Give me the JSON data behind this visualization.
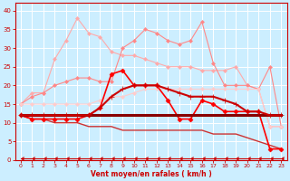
{
  "xlabel": "Vent moyen/en rafales ( km/h )",
  "background_color": "#cceeff",
  "grid_color": "#ffffff",
  "xlim": [
    -0.5,
    23.5
  ],
  "ylim": [
    0,
    42
  ],
  "yticks": [
    0,
    5,
    10,
    15,
    20,
    25,
    30,
    35,
    40
  ],
  "xticks": [
    0,
    1,
    2,
    3,
    4,
    5,
    6,
    7,
    8,
    9,
    10,
    11,
    12,
    13,
    14,
    15,
    16,
    17,
    18,
    19,
    20,
    21,
    22,
    23
  ],
  "lines": [
    {
      "x": [
        0,
        1,
        2,
        3,
        4,
        5,
        6,
        7,
        8,
        9,
        10,
        11,
        12,
        13,
        14,
        15,
        16,
        17,
        18,
        19,
        20,
        21,
        22,
        23
      ],
      "y": [
        15,
        18,
        18,
        27,
        32,
        38,
        34,
        33,
        29,
        28,
        28,
        27,
        26,
        25,
        25,
        25,
        24,
        24,
        24,
        25,
        20,
        19,
        9,
        9
      ],
      "color": "#ffaaaa",
      "lw": 0.8,
      "marker": "D",
      "ms": 2.0,
      "zorder": 2
    },
    {
      "x": [
        0,
        1,
        2,
        3,
        4,
        5,
        6,
        7,
        8,
        9,
        10,
        11,
        12,
        13,
        14,
        15,
        16,
        17,
        18,
        19,
        20,
        21,
        22,
        23
      ],
      "y": [
        15,
        17,
        18,
        20,
        21,
        22,
        22,
        21,
        21,
        30,
        32,
        35,
        34,
        32,
        31,
        32,
        37,
        26,
        20,
        20,
        20,
        19,
        25,
        9
      ],
      "color": "#ff8888",
      "lw": 0.8,
      "marker": "D",
      "ms": 2.0,
      "zorder": 2
    },
    {
      "x": [
        0,
        1,
        2,
        3,
        4,
        5,
        6,
        7,
        8,
        9,
        10,
        11,
        12,
        13,
        14,
        15,
        16,
        17,
        18,
        19,
        20,
        21,
        22,
        23
      ],
      "y": [
        15,
        15,
        15,
        15,
        15,
        15,
        15,
        16,
        17,
        17,
        18,
        19,
        19,
        19,
        19,
        19,
        19,
        19,
        19,
        19,
        19,
        19,
        9,
        9
      ],
      "color": "#ffcccc",
      "lw": 0.8,
      "marker": "D",
      "ms": 2.0,
      "zorder": 2
    },
    {
      "x": [
        0,
        1,
        2,
        3,
        4,
        5,
        6,
        7,
        8,
        9,
        10,
        11,
        12,
        13,
        14,
        15,
        16,
        17,
        18,
        19,
        20,
        21,
        22,
        23
      ],
      "y": [
        12,
        12,
        12,
        12,
        12,
        12,
        12,
        14,
        17,
        19,
        20,
        20,
        20,
        19,
        18,
        17,
        17,
        17,
        16,
        15,
        13,
        13,
        12,
        12
      ],
      "color": "#cc0000",
      "lw": 1.5,
      "marker": "+",
      "ms": 4,
      "zorder": 4
    },
    {
      "x": [
        0,
        1,
        2,
        3,
        4,
        5,
        6,
        7,
        8,
        9,
        10,
        11,
        12,
        13,
        14,
        15,
        16,
        17,
        18,
        19,
        20,
        21,
        22,
        23
      ],
      "y": [
        12,
        11,
        11,
        11,
        11,
        11,
        12,
        14,
        23,
        24,
        20,
        20,
        20,
        16,
        11,
        11,
        16,
        15,
        13,
        13,
        13,
        13,
        3,
        3
      ],
      "color": "#ff0000",
      "lw": 1.2,
      "marker": "D",
      "ms": 2.5,
      "zorder": 3
    },
    {
      "x": [
        0,
        1,
        2,
        3,
        4,
        5,
        6,
        7,
        8,
        9,
        10,
        11,
        12,
        13,
        14,
        15,
        16,
        17,
        18,
        19,
        20,
        21,
        22,
        23
      ],
      "y": [
        12,
        12,
        12,
        12,
        12,
        12,
        12,
        12,
        12,
        12,
        12,
        12,
        12,
        12,
        12,
        12,
        12,
        12,
        12,
        12,
        12,
        12,
        12,
        12
      ],
      "color": "#880000",
      "lw": 2.2,
      "marker": null,
      "ms": 0,
      "zorder": 3
    },
    {
      "x": [
        0,
        1,
        2,
        3,
        4,
        5,
        6,
        7,
        8,
        9,
        10,
        11,
        12,
        13,
        14,
        15,
        16,
        17,
        18,
        19,
        20,
        21,
        22,
        23
      ],
      "y": [
        12,
        11,
        11,
        10,
        10,
        10,
        9,
        9,
        9,
        8,
        8,
        8,
        8,
        8,
        8,
        8,
        8,
        7,
        7,
        7,
        6,
        5,
        4,
        3
      ],
      "color": "#cc3333",
      "lw": 1.0,
      "marker": null,
      "ms": 0,
      "zorder": 2
    },
    {
      "x": [
        0,
        1,
        2,
        3,
        4,
        5,
        6,
        7,
        8,
        9,
        10,
        11,
        12,
        13,
        14,
        15,
        16,
        17,
        18,
        19,
        20,
        21,
        22,
        23
      ],
      "y": [
        0.5,
        0.5,
        0.5,
        0.5,
        0.5,
        0.5,
        0.5,
        0.5,
        0.5,
        0.5,
        0.5,
        0.5,
        0.5,
        0.5,
        0.5,
        0.5,
        0.5,
        0.5,
        0.5,
        0.5,
        0.5,
        0.5,
        0.5,
        0.5
      ],
      "color": "#cc0000",
      "lw": 0.8,
      "marker": 4,
      "ms": 3,
      "zorder": 2
    }
  ]
}
